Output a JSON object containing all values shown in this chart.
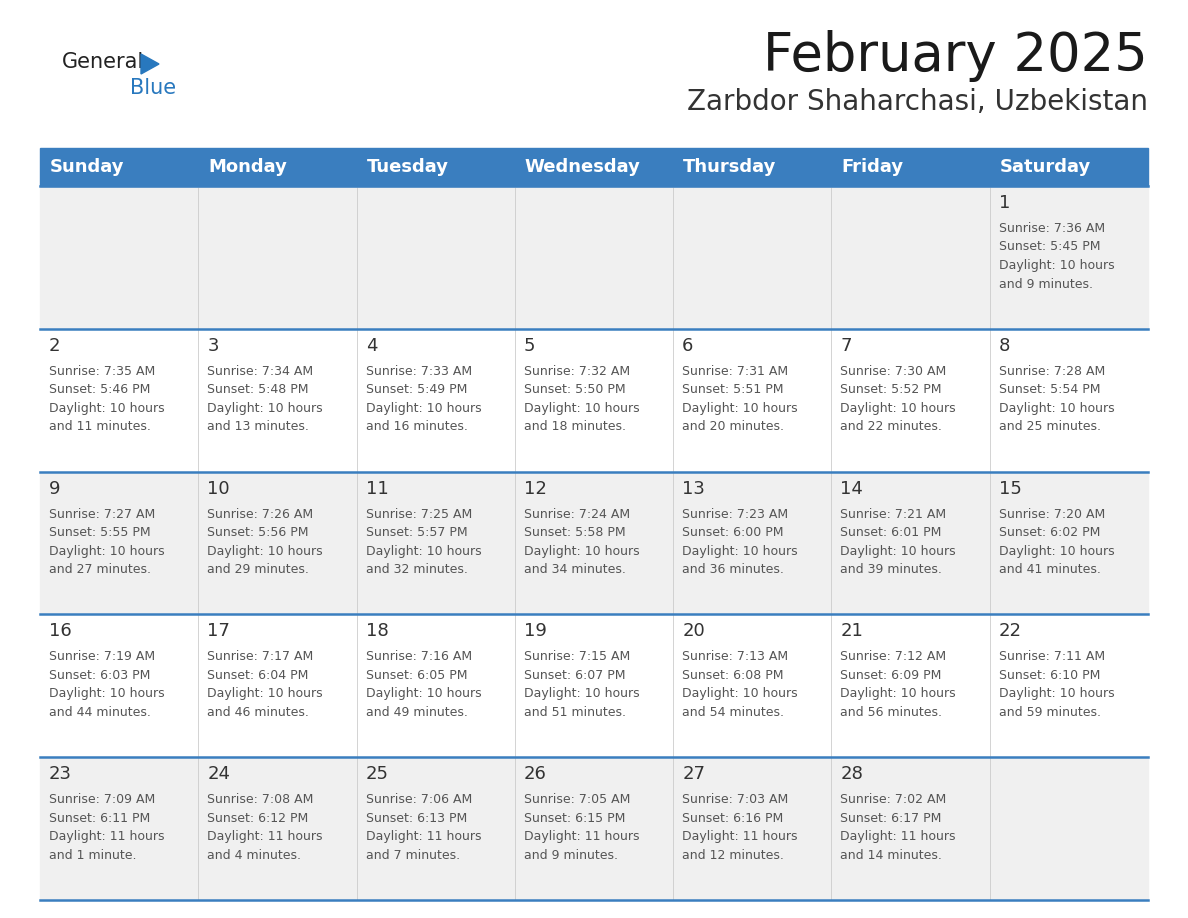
{
  "title": "February 2025",
  "subtitle": "Zarbdor Shaharchasi, Uzbekistan",
  "header_bg": "#3a7ebf",
  "header_text_color": "#FFFFFF",
  "days_of_week": [
    "Sunday",
    "Monday",
    "Tuesday",
    "Wednesday",
    "Thursday",
    "Friday",
    "Saturday"
  ],
  "title_color": "#1a1a1a",
  "subtitle_color": "#333333",
  "cell_bg_odd": "#f0f0f0",
  "cell_bg_even": "#ffffff",
  "divider_color": "#3a7ebf",
  "day_num_color": "#333333",
  "info_text_color": "#555555",
  "logo_general_color": "#222222",
  "logo_blue_color": "#2878be",
  "calendar_data": [
    [
      null,
      null,
      null,
      null,
      null,
      null,
      {
        "day": 1,
        "sunrise": "7:36 AM",
        "sunset": "5:45 PM",
        "daylight": "10 hours and 9 minutes."
      }
    ],
    [
      {
        "day": 2,
        "sunrise": "7:35 AM",
        "sunset": "5:46 PM",
        "daylight": "10 hours and 11 minutes."
      },
      {
        "day": 3,
        "sunrise": "7:34 AM",
        "sunset": "5:48 PM",
        "daylight": "10 hours and 13 minutes."
      },
      {
        "day": 4,
        "sunrise": "7:33 AM",
        "sunset": "5:49 PM",
        "daylight": "10 hours and 16 minutes."
      },
      {
        "day": 5,
        "sunrise": "7:32 AM",
        "sunset": "5:50 PM",
        "daylight": "10 hours and 18 minutes."
      },
      {
        "day": 6,
        "sunrise": "7:31 AM",
        "sunset": "5:51 PM",
        "daylight": "10 hours and 20 minutes."
      },
      {
        "day": 7,
        "sunrise": "7:30 AM",
        "sunset": "5:52 PM",
        "daylight": "10 hours and 22 minutes."
      },
      {
        "day": 8,
        "sunrise": "7:28 AM",
        "sunset": "5:54 PM",
        "daylight": "10 hours and 25 minutes."
      }
    ],
    [
      {
        "day": 9,
        "sunrise": "7:27 AM",
        "sunset": "5:55 PM",
        "daylight": "10 hours and 27 minutes."
      },
      {
        "day": 10,
        "sunrise": "7:26 AM",
        "sunset": "5:56 PM",
        "daylight": "10 hours and 29 minutes."
      },
      {
        "day": 11,
        "sunrise": "7:25 AM",
        "sunset": "5:57 PM",
        "daylight": "10 hours and 32 minutes."
      },
      {
        "day": 12,
        "sunrise": "7:24 AM",
        "sunset": "5:58 PM",
        "daylight": "10 hours and 34 minutes."
      },
      {
        "day": 13,
        "sunrise": "7:23 AM",
        "sunset": "6:00 PM",
        "daylight": "10 hours and 36 minutes."
      },
      {
        "day": 14,
        "sunrise": "7:21 AM",
        "sunset": "6:01 PM",
        "daylight": "10 hours and 39 minutes."
      },
      {
        "day": 15,
        "sunrise": "7:20 AM",
        "sunset": "6:02 PM",
        "daylight": "10 hours and 41 minutes."
      }
    ],
    [
      {
        "day": 16,
        "sunrise": "7:19 AM",
        "sunset": "6:03 PM",
        "daylight": "10 hours and 44 minutes."
      },
      {
        "day": 17,
        "sunrise": "7:17 AM",
        "sunset": "6:04 PM",
        "daylight": "10 hours and 46 minutes."
      },
      {
        "day": 18,
        "sunrise": "7:16 AM",
        "sunset": "6:05 PM",
        "daylight": "10 hours and 49 minutes."
      },
      {
        "day": 19,
        "sunrise": "7:15 AM",
        "sunset": "6:07 PM",
        "daylight": "10 hours and 51 minutes."
      },
      {
        "day": 20,
        "sunrise": "7:13 AM",
        "sunset": "6:08 PM",
        "daylight": "10 hours and 54 minutes."
      },
      {
        "day": 21,
        "sunrise": "7:12 AM",
        "sunset": "6:09 PM",
        "daylight": "10 hours and 56 minutes."
      },
      {
        "day": 22,
        "sunrise": "7:11 AM",
        "sunset": "6:10 PM",
        "daylight": "10 hours and 59 minutes."
      }
    ],
    [
      {
        "day": 23,
        "sunrise": "7:09 AM",
        "sunset": "6:11 PM",
        "daylight": "11 hours and 1 minute."
      },
      {
        "day": 24,
        "sunrise": "7:08 AM",
        "sunset": "6:12 PM",
        "daylight": "11 hours and 4 minutes."
      },
      {
        "day": 25,
        "sunrise": "7:06 AM",
        "sunset": "6:13 PM",
        "daylight": "11 hours and 7 minutes."
      },
      {
        "day": 26,
        "sunrise": "7:05 AM",
        "sunset": "6:15 PM",
        "daylight": "11 hours and 9 minutes."
      },
      {
        "day": 27,
        "sunrise": "7:03 AM",
        "sunset": "6:16 PM",
        "daylight": "11 hours and 12 minutes."
      },
      {
        "day": 28,
        "sunrise": "7:02 AM",
        "sunset": "6:17 PM",
        "daylight": "11 hours and 14 minutes."
      },
      null
    ]
  ]
}
